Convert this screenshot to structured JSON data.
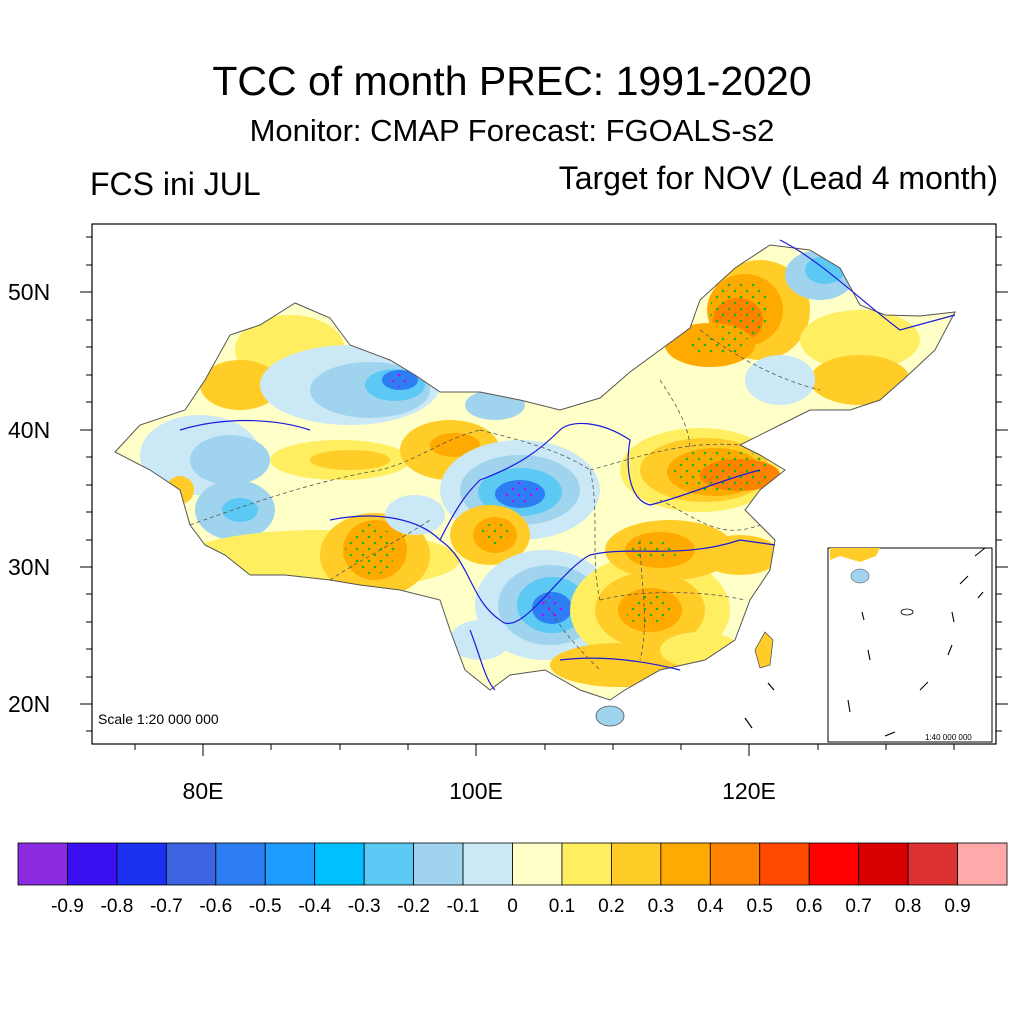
{
  "title": "TCC of month PREC: 1991-2020",
  "subtitle": "Monitor: CMAP   Forecast: FGOALS-s2",
  "left_label": "FCS ini JUL",
  "right_label": "Target for NOV (Lead 4 month)",
  "lat_labels": [
    "50N",
    "40N",
    "30N",
    "20N"
  ],
  "lon_labels": [
    "80E",
    "100E",
    "120E"
  ],
  "scale_main": "Scale 1:20 000 000",
  "scale_inset": "1:40 000 000",
  "colorbar": {
    "colors": [
      "#8a2be2",
      "#3a10f0",
      "#1c30f0",
      "#3c64e0",
      "#2c7ef2",
      "#1e9cff",
      "#00c0ff",
      "#5cc8f4",
      "#a0d4ee",
      "#cae8f6",
      "#ffffc8",
      "#ffee60",
      "#ffcc28",
      "#ffaa00",
      "#ff8200",
      "#ff4a00",
      "#ff0000",
      "#d80000",
      "#dc3232",
      "#ffaaaa"
    ],
    "labels": [
      "-0.9",
      "-0.8",
      "-0.7",
      "-0.6",
      "-0.5",
      "-0.4",
      "-0.3",
      "-0.2",
      "-0.1",
      "0",
      "0.1",
      "0.2",
      "0.3",
      "0.4",
      "0.5",
      "0.6",
      "0.7",
      "0.8",
      "0.9"
    ]
  }
}
